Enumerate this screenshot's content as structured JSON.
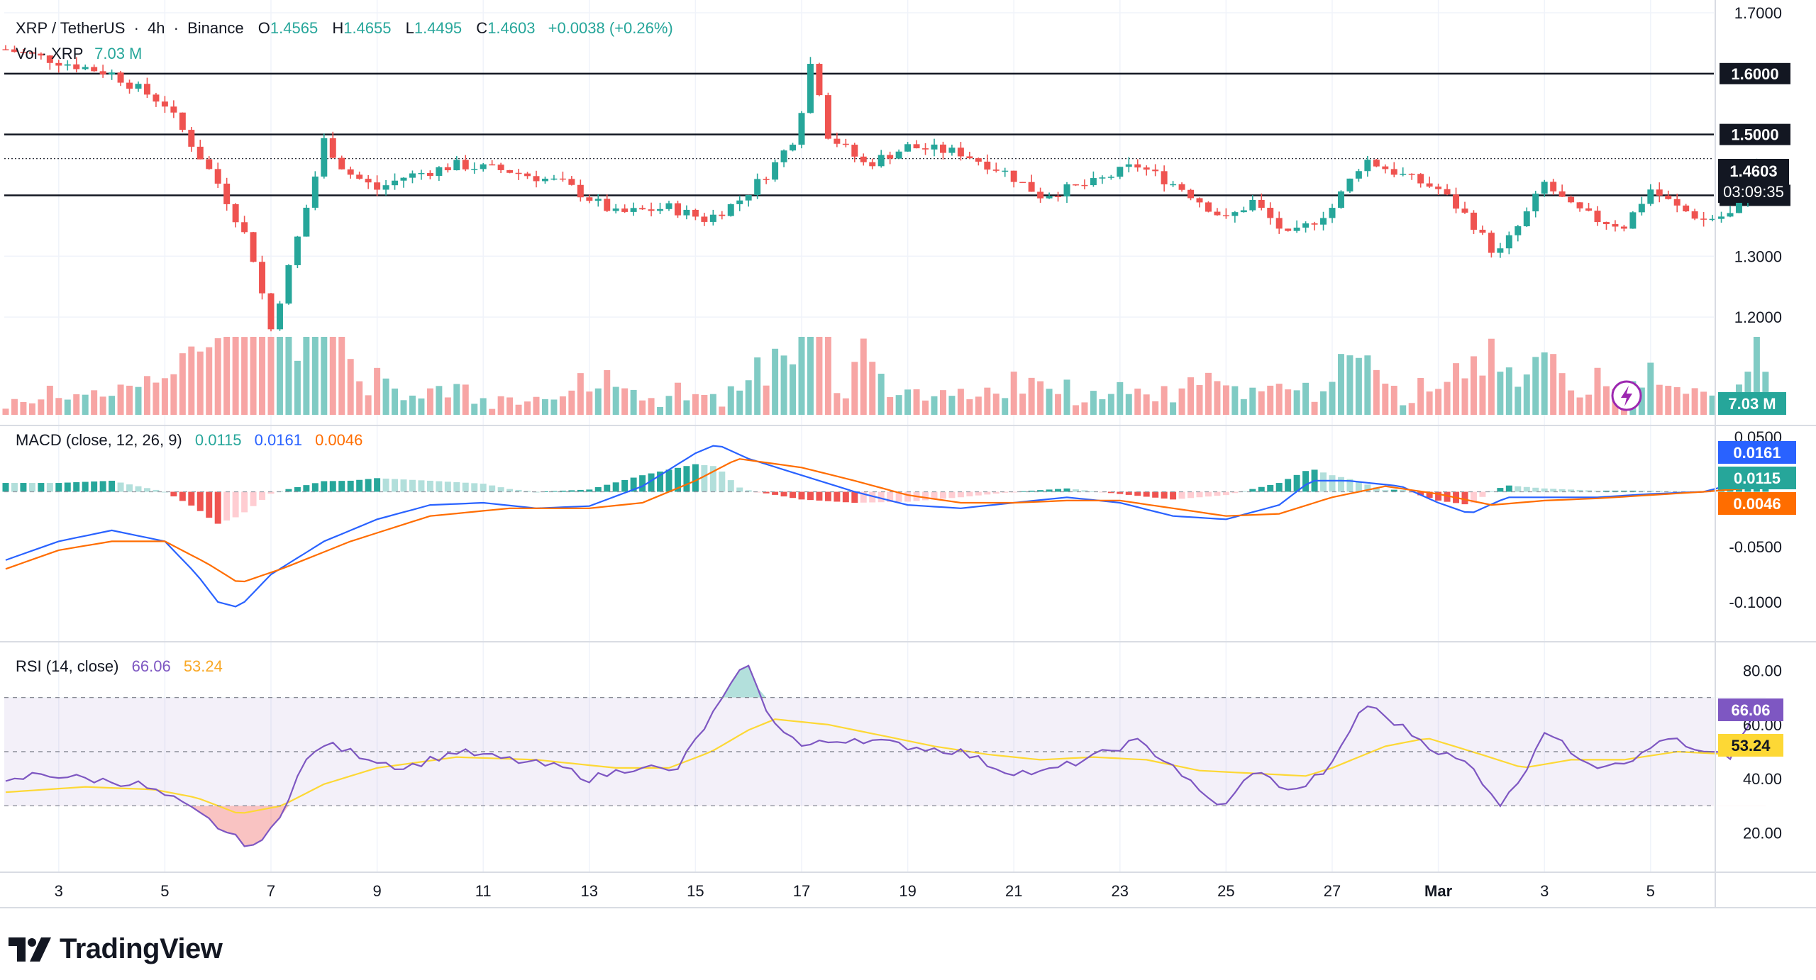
{
  "header": {
    "symbol": "XRP / TetherUS",
    "interval": "4h",
    "exchange": "Binance",
    "o_label": "O",
    "o_value": "1.4565",
    "h_label": "H",
    "h_value": "1.4655",
    "l_label": "L",
    "l_value": "1.4495",
    "c_label": "C",
    "c_value": "1.4603",
    "change": "+0.0038 (+0.26%)",
    "sep": "·"
  },
  "volume_legend": {
    "label": "Vol · XRP",
    "value": "7.03 M"
  },
  "macd_legend": {
    "label": "MACD (close, 12, 26, 9)",
    "hist": "0.0115",
    "macd": "0.0161",
    "signal": "0.0046"
  },
  "rsi_legend": {
    "label": "RSI (14, close)",
    "rsi": "66.06",
    "ma": "53.24"
  },
  "price_tags": {
    "last": "1.4603",
    "countdown": "03:09:35",
    "volume": "7.03 M"
  },
  "macd_tags": {
    "macd": "0.0161",
    "hist": "0.0115",
    "signal": "0.0046"
  },
  "rsi_tags": {
    "rsi": "66.06",
    "ma": "53.24"
  },
  "brand": {
    "name": "TradingView",
    "icon": "tradingview-logo-icon"
  },
  "colors": {
    "up": "#26a69a",
    "down": "#ef5350",
    "macd": "#2962ff",
    "signal": "#ff6d00",
    "rsi": "#7e57c2",
    "rsi_ma": "#fdd835",
    "vol_up": "#80cbc4",
    "vol_down": "#f7a5a4"
  },
  "chart_data": [
    {
      "type": "candlestick",
      "title": "XRP / TetherUS · 4h · Binance",
      "x_ticks": [
        "3",
        "5",
        "7",
        "9",
        "11",
        "13",
        "15",
        "17",
        "19",
        "21",
        "23",
        "25",
        "27",
        "Mar",
        "3",
        "5"
      ],
      "y_ticks": [
        "1.7000",
        "1.6000",
        "1.5000",
        "1.4000",
        "1.3000",
        "1.2000"
      ],
      "ylim": [
        1.15,
        1.7
      ],
      "horizontal_lines": [
        1.6,
        1.5,
        1.4
      ],
      "last_price": 1.4603,
      "close_path": [
        [
          0,
          1.64
        ],
        [
          1,
          1.62
        ],
        [
          2,
          1.6
        ],
        [
          3,
          1.55
        ],
        [
          4,
          1.42
        ],
        [
          4.6,
          1.32
        ],
        [
          5.0,
          1.18
        ],
        [
          5.4,
          1.3
        ],
        [
          5.8,
          1.42
        ],
        [
          6.0,
          1.49
        ],
        [
          6.4,
          1.44
        ],
        [
          7.0,
          1.41
        ],
        [
          7.5,
          1.43
        ],
        [
          8.5,
          1.45
        ],
        [
          9.5,
          1.44
        ],
        [
          10.5,
          1.42
        ],
        [
          11.5,
          1.37
        ],
        [
          12.5,
          1.38
        ],
        [
          13.2,
          1.36
        ],
        [
          13.8,
          1.39
        ],
        [
          14.4,
          1.44
        ],
        [
          14.9,
          1.5
        ],
        [
          15.2,
          1.63
        ],
        [
          15.5,
          1.5
        ],
        [
          16.2,
          1.45
        ],
        [
          17.0,
          1.48
        ],
        [
          18.0,
          1.47
        ],
        [
          18.8,
          1.44
        ],
        [
          19.5,
          1.4
        ],
        [
          20.5,
          1.42
        ],
        [
          21.3,
          1.45
        ],
        [
          22.2,
          1.41
        ],
        [
          23.0,
          1.36
        ],
        [
          23.5,
          1.39
        ],
        [
          24.2,
          1.33
        ],
        [
          25.0,
          1.38
        ],
        [
          25.6,
          1.46
        ],
        [
          26.4,
          1.43
        ],
        [
          27.0,
          1.41
        ],
        [
          27.6,
          1.36
        ],
        [
          28.1,
          1.3
        ],
        [
          28.6,
          1.36
        ],
        [
          29.0,
          1.42
        ],
        [
          29.5,
          1.38
        ],
        [
          30.0,
          1.36
        ],
        [
          30.5,
          1.35
        ],
        [
          31.0,
          1.41
        ],
        [
          31.5,
          1.38
        ],
        [
          32.0,
          1.36
        ],
        [
          32.6,
          1.37
        ],
        [
          33.0,
          1.45
        ],
        [
          33.3,
          1.46
        ]
      ]
    },
    {
      "type": "bar",
      "title": "Vol · XRP",
      "value": "7.03 M"
    },
    {
      "type": "line",
      "title": "MACD (close, 12, 26, 9)",
      "y_ticks": [
        "0.0500",
        "-0.0500",
        "-0.1000"
      ],
      "ylim": [
        -0.12,
        0.055
      ],
      "zero_line": 0,
      "macd_path": [
        [
          0,
          -0.062
        ],
        [
          1,
          -0.045
        ],
        [
          2,
          -0.035
        ],
        [
          3,
          -0.045
        ],
        [
          3.6,
          -0.075
        ],
        [
          4.0,
          -0.1
        ],
        [
          4.4,
          -0.105
        ],
        [
          5.0,
          -0.075
        ],
        [
          6.0,
          -0.045
        ],
        [
          7.0,
          -0.025
        ],
        [
          8.0,
          -0.012
        ],
        [
          9.0,
          -0.01
        ],
        [
          10.0,
          -0.015
        ],
        [
          11.0,
          -0.013
        ],
        [
          12.0,
          0.005
        ],
        [
          13.0,
          0.035
        ],
        [
          13.4,
          0.043
        ],
        [
          14.0,
          0.03
        ],
        [
          15.0,
          0.015
        ],
        [
          16.0,
          0.0
        ],
        [
          17.0,
          -0.012
        ],
        [
          18.0,
          -0.015
        ],
        [
          19.0,
          -0.01
        ],
        [
          20.0,
          -0.005
        ],
        [
          21.0,
          -0.01
        ],
        [
          22.0,
          -0.022
        ],
        [
          23.0,
          -0.025
        ],
        [
          24.0,
          -0.012
        ],
        [
          24.6,
          0.01
        ],
        [
          25.3,
          0.01
        ],
        [
          26.3,
          0.005
        ],
        [
          27.0,
          -0.01
        ],
        [
          27.6,
          -0.02
        ],
        [
          28.3,
          -0.005
        ],
        [
          29.0,
          -0.005
        ],
        [
          30.0,
          -0.005
        ],
        [
          31.0,
          -0.002
        ],
        [
          32.0,
          0.0
        ],
        [
          33.3,
          0.016
        ]
      ],
      "signal_path": [
        [
          0,
          -0.07
        ],
        [
          1,
          -0.053
        ],
        [
          2,
          -0.045
        ],
        [
          3,
          -0.045
        ],
        [
          3.8,
          -0.065
        ],
        [
          4.4,
          -0.083
        ],
        [
          5.2,
          -0.07
        ],
        [
          6.5,
          -0.045
        ],
        [
          8.0,
          -0.022
        ],
        [
          9.5,
          -0.015
        ],
        [
          11.0,
          -0.015
        ],
        [
          12.0,
          -0.01
        ],
        [
          13.0,
          0.01
        ],
        [
          13.8,
          0.03
        ],
        [
          15.0,
          0.022
        ],
        [
          16.0,
          0.01
        ],
        [
          17.0,
          -0.003
        ],
        [
          18.0,
          -0.01
        ],
        [
          19.0,
          -0.01
        ],
        [
          20.0,
          -0.008
        ],
        [
          21.0,
          -0.008
        ],
        [
          22.0,
          -0.015
        ],
        [
          23.0,
          -0.022
        ],
        [
          24.0,
          -0.02
        ],
        [
          25.0,
          -0.005
        ],
        [
          26.0,
          0.005
        ],
        [
          27.0,
          -0.002
        ],
        [
          28.0,
          -0.012
        ],
        [
          29.0,
          -0.008
        ],
        [
          30.0,
          -0.006
        ],
        [
          31.0,
          -0.003
        ],
        [
          32.0,
          0.0
        ],
        [
          33.3,
          0.005
        ]
      ]
    },
    {
      "type": "line",
      "title": "RSI (14, close)",
      "y_ticks": [
        "80.00",
        "60.00",
        "40.00",
        "20.00"
      ],
      "ylim": [
        12,
        88
      ],
      "band": [
        30,
        70
      ],
      "midline": 50,
      "rsi_path": [
        [
          0,
          38
        ],
        [
          0.6,
          42
        ],
        [
          1.5,
          40
        ],
        [
          2.5,
          38
        ],
        [
          3.2,
          32
        ],
        [
          3.8,
          25
        ],
        [
          4.4,
          17
        ],
        [
          4.8,
          15
        ],
        [
          5.2,
          28
        ],
        [
          5.6,
          45
        ],
        [
          6.0,
          53
        ],
        [
          6.8,
          48
        ],
        [
          7.5,
          44
        ],
        [
          8.5,
          50
        ],
        [
          9.5,
          47
        ],
        [
          10.5,
          44
        ],
        [
          11.0,
          40
        ],
        [
          12.0,
          45
        ],
        [
          12.6,
          42
        ],
        [
          13.2,
          60
        ],
        [
          13.8,
          78
        ],
        [
          14.0,
          83
        ],
        [
          14.3,
          65
        ],
        [
          15.0,
          52
        ],
        [
          16.0,
          55
        ],
        [
          17.0,
          52
        ],
        [
          18.0,
          50
        ],
        [
          18.8,
          43
        ],
        [
          19.5,
          42
        ],
        [
          20.5,
          48
        ],
        [
          21.3,
          54
        ],
        [
          22.0,
          45
        ],
        [
          22.6,
          33
        ],
        [
          23.0,
          30
        ],
        [
          23.5,
          43
        ],
        [
          24.3,
          35
        ],
        [
          25.0,
          45
        ],
        [
          25.6,
          68
        ],
        [
          26.4,
          58
        ],
        [
          27.0,
          50
        ],
        [
          27.6,
          45
        ],
        [
          28.2,
          30
        ],
        [
          28.6,
          42
        ],
        [
          29.0,
          58
        ],
        [
          29.5,
          50
        ],
        [
          30.0,
          45
        ],
        [
          30.8,
          48
        ],
        [
          31.3,
          56
        ],
        [
          31.8,
          50
        ],
        [
          32.5,
          48
        ],
        [
          33.0,
          66
        ],
        [
          33.3,
          66
        ]
      ],
      "ma_path": [
        [
          0,
          35
        ],
        [
          1.5,
          37
        ],
        [
          2.8,
          36
        ],
        [
          3.6,
          33
        ],
        [
          4.4,
          27
        ],
        [
          5.2,
          30
        ],
        [
          6.0,
          38
        ],
        [
          7.0,
          44
        ],
        [
          8.5,
          48
        ],
        [
          10.0,
          47
        ],
        [
          11.5,
          44
        ],
        [
          12.5,
          44
        ],
        [
          13.3,
          50
        ],
        [
          14.0,
          58
        ],
        [
          14.5,
          62
        ],
        [
          15.5,
          60
        ],
        [
          16.5,
          56
        ],
        [
          17.5,
          52
        ],
        [
          18.5,
          49
        ],
        [
          19.5,
          47
        ],
        [
          20.5,
          48
        ],
        [
          21.5,
          47
        ],
        [
          22.5,
          43
        ],
        [
          23.5,
          42
        ],
        [
          24.5,
          41
        ],
        [
          25.0,
          44
        ],
        [
          26.0,
          52
        ],
        [
          26.8,
          55
        ],
        [
          27.8,
          49
        ],
        [
          28.6,
          44
        ],
        [
          29.5,
          47
        ],
        [
          30.5,
          47
        ],
        [
          31.5,
          50
        ],
        [
          32.5,
          49
        ],
        [
          33.3,
          53
        ]
      ]
    }
  ]
}
